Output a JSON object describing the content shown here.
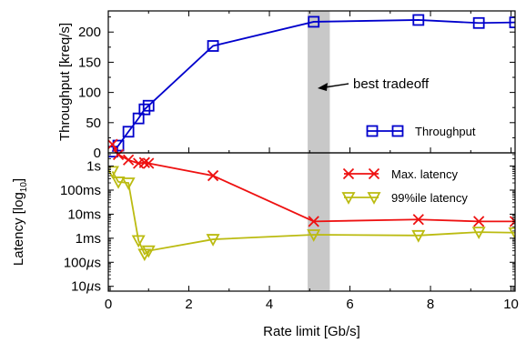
{
  "chart_data": {
    "type": "line",
    "xlabel": "Rate limit [Gb/s]",
    "xlim": [
      0,
      10.1
    ],
    "xticks": [
      "0",
      "2",
      "4",
      "6",
      "8",
      "10"
    ],
    "shaded_band": {
      "x_from": 4.95,
      "x_to": 5.5,
      "color": "#c8c8c8"
    },
    "annotation": {
      "text": "best tradeoff"
    },
    "panels": [
      {
        "name": "throughput",
        "ylabel": "Throughput [kreq/s]",
        "ylim": [
          0,
          235
        ],
        "yticks": [
          "0",
          "50",
          "100",
          "150",
          "200"
        ],
        "legend_position": "bottom-right",
        "series": [
          {
            "name": "Throughput",
            "marker": "square",
            "color": "#0000cc",
            "x": [
              0.1,
              0.25,
              0.5,
              0.75,
              0.9,
              1.0,
              2.6,
              5.1,
              7.7,
              9.2,
              10.1
            ],
            "y": [
              2,
              12,
              35,
              57,
              72,
              78,
              177,
              217,
              220,
              215,
              216
            ]
          }
        ]
      },
      {
        "name": "latency",
        "ylabel": "Latency [log",
        "ylabel_sub": "10",
        "ylabel_end": "]",
        "scale": "log",
        "ylim_log10_seconds": [
          -5.2,
          0.55
        ],
        "yticks": [
          "1s",
          "100ms",
          "10ms",
          "1ms",
          "100µs",
          "10µs"
        ],
        "legend_position": "top-right",
        "series": [
          {
            "name": "Max. latency",
            "marker": "x",
            "color": "#ee1111",
            "x": [
              0.1,
              0.25,
              0.5,
              0.75,
              0.9,
              1.0,
              2.6,
              5.1,
              7.7,
              9.2,
              10.1
            ],
            "y_seconds": [
              8,
              3,
              1.8,
              1.3,
              1.4,
              1.3,
              0.4,
              0.005,
              0.006,
              0.005,
              0.005
            ]
          },
          {
            "name": "99%ile latency",
            "marker": "triangle-down",
            "color": "#bbbb11",
            "x": [
              0.1,
              0.25,
              0.5,
              0.75,
              0.9,
              1.0,
              2.6,
              5.1,
              7.7,
              9.2,
              10.1
            ],
            "y_seconds": [
              0.6,
              0.22,
              0.2,
              0.0008,
              0.00022,
              0.0003,
              0.0009,
              0.0014,
              0.0013,
              0.0018,
              0.0017
            ]
          }
        ]
      }
    ]
  }
}
